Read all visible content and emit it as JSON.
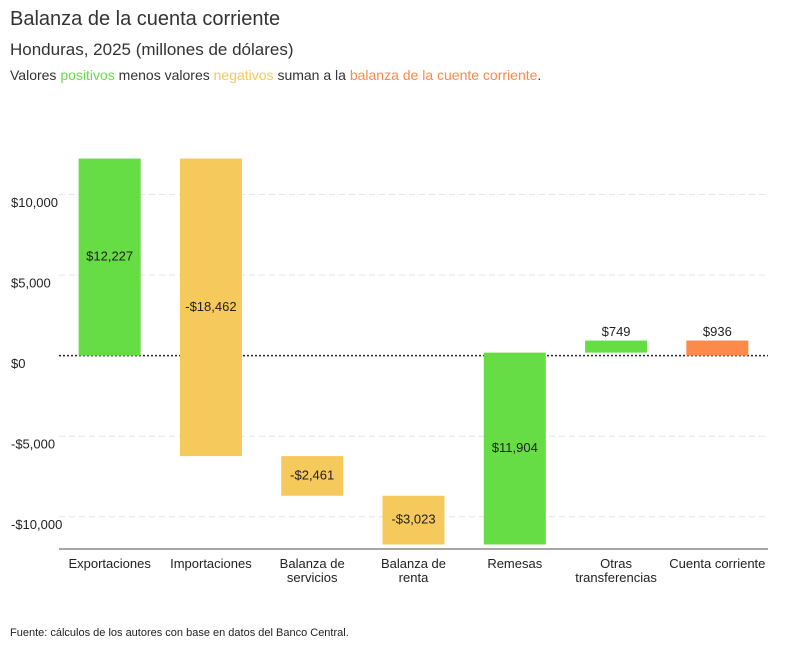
{
  "chart_data": {
    "type": "waterfall",
    "title": "Balanza de la cuenta corriente",
    "subtitle": "Honduras, 2025 (millones de dólares)",
    "note": [
      "Valores ",
      "positivos",
      " menos valores ",
      "negativos",
      " suman a la ",
      "balanza de la cuente corriente",
      "."
    ],
    "categories": [
      "Exportaciones",
      "Importaciones",
      "Balanza de servicios",
      "Balanza de renta",
      "Remesas",
      "Otras transferencias",
      "Cuenta corriente"
    ],
    "values": [
      12227,
      -18462,
      -2461,
      -3023,
      11904,
      749,
      936
    ],
    "value_labels": [
      "$12,227",
      "-$18,462",
      "-$2,461",
      "-$3,023",
      "$11,904",
      "$749",
      "$936"
    ],
    "measure": [
      "relative",
      "relative",
      "relative",
      "relative",
      "relative",
      "relative",
      "total"
    ],
    "colors": {
      "positive": "#66dd44",
      "negative": "#f5c95c",
      "total": "#fc8a4a"
    },
    "ylim": [
      -12000,
      14000
    ],
    "yticks": [
      {
        "value": -10000,
        "label": "-$10,000"
      },
      {
        "value": -5000,
        "label": "-$5,000"
      },
      {
        "value": 0,
        "label": "$0"
      },
      {
        "value": 5000,
        "label": "$5,000"
      },
      {
        "value": 10000,
        "label": "$10,000"
      }
    ],
    "grid": true,
    "source": "Fuente: cálculos de los autores con base en datos del Banco Central."
  }
}
